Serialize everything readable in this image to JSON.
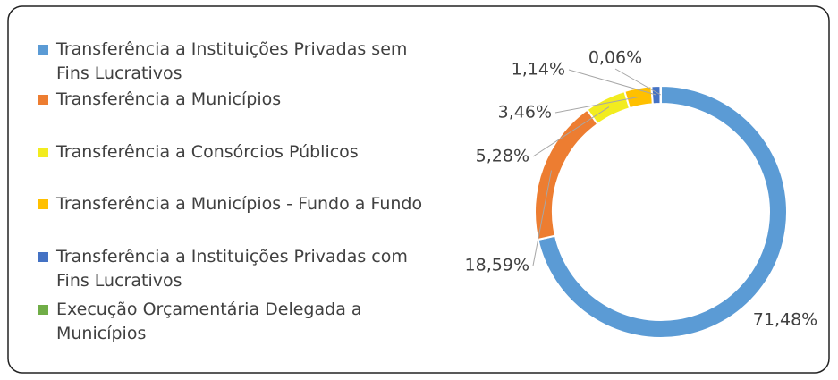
{
  "chart_data": {
    "type": "donut",
    "categories": [
      "Transferência a Instituições Privadas sem Fins Lucrativos",
      "Transferência a Municípios",
      "Transferência a Consórcios Públicos",
      "Transferência a Municípios - Fundo a Fundo",
      "Transferência a Instituições Privadas com Fins Lucrativos",
      "Execução Orçamentária Delegada a Municípios"
    ],
    "values": [
      71.48,
      18.59,
      5.28,
      3.46,
      1.14,
      0.06
    ],
    "value_labels": [
      "71,48%",
      "18,59%",
      "5,28%",
      "3,46%",
      "1,14%",
      "0,06%"
    ],
    "colors": [
      "#5b9bd5",
      "#ed7d31",
      "#f2ec1f",
      "#ffc000",
      "#4472c4",
      "#70ad47"
    ],
    "legend": "left"
  }
}
